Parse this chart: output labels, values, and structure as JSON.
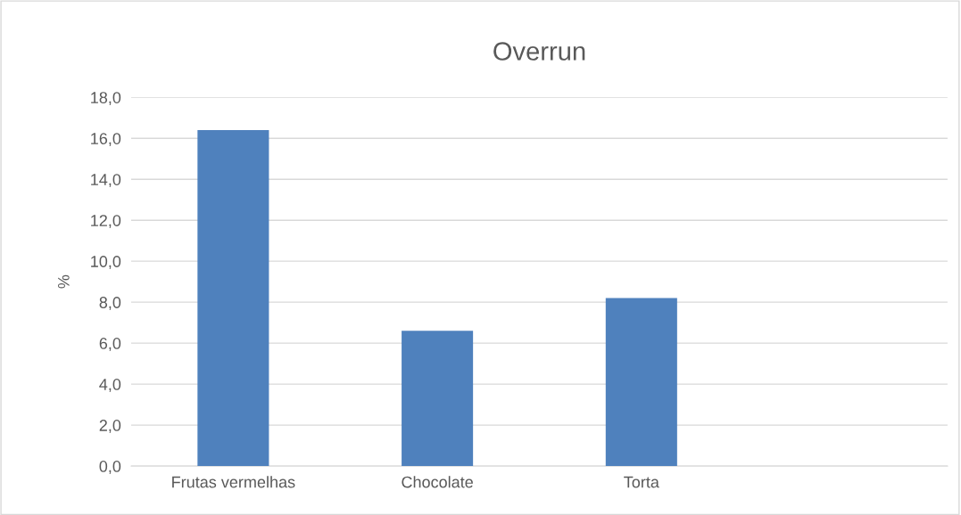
{
  "chart_data": {
    "type": "bar",
    "title": "Overrun",
    "ylabel": "%",
    "categories": [
      "Frutas vermelhas",
      "Chocolate",
      "Torta",
      null
    ],
    "values": [
      16.4,
      6.6,
      8.2,
      null
    ],
    "color": "#4f81bd",
    "ylim": [
      0,
      18
    ],
    "yticks": [
      {
        "value": 0,
        "label": "0,0"
      },
      {
        "value": 2,
        "label": "2,0"
      },
      {
        "value": 4,
        "label": "4,0"
      },
      {
        "value": 6,
        "label": "6,0"
      },
      {
        "value": 8,
        "label": "8,0"
      },
      {
        "value": 10,
        "label": "10,0"
      },
      {
        "value": 12,
        "label": "12,0"
      },
      {
        "value": 14,
        "label": "14,0"
      },
      {
        "value": 16,
        "label": "16,0"
      },
      {
        "value": 18,
        "label": "18,0"
      }
    ],
    "grid": "y"
  }
}
